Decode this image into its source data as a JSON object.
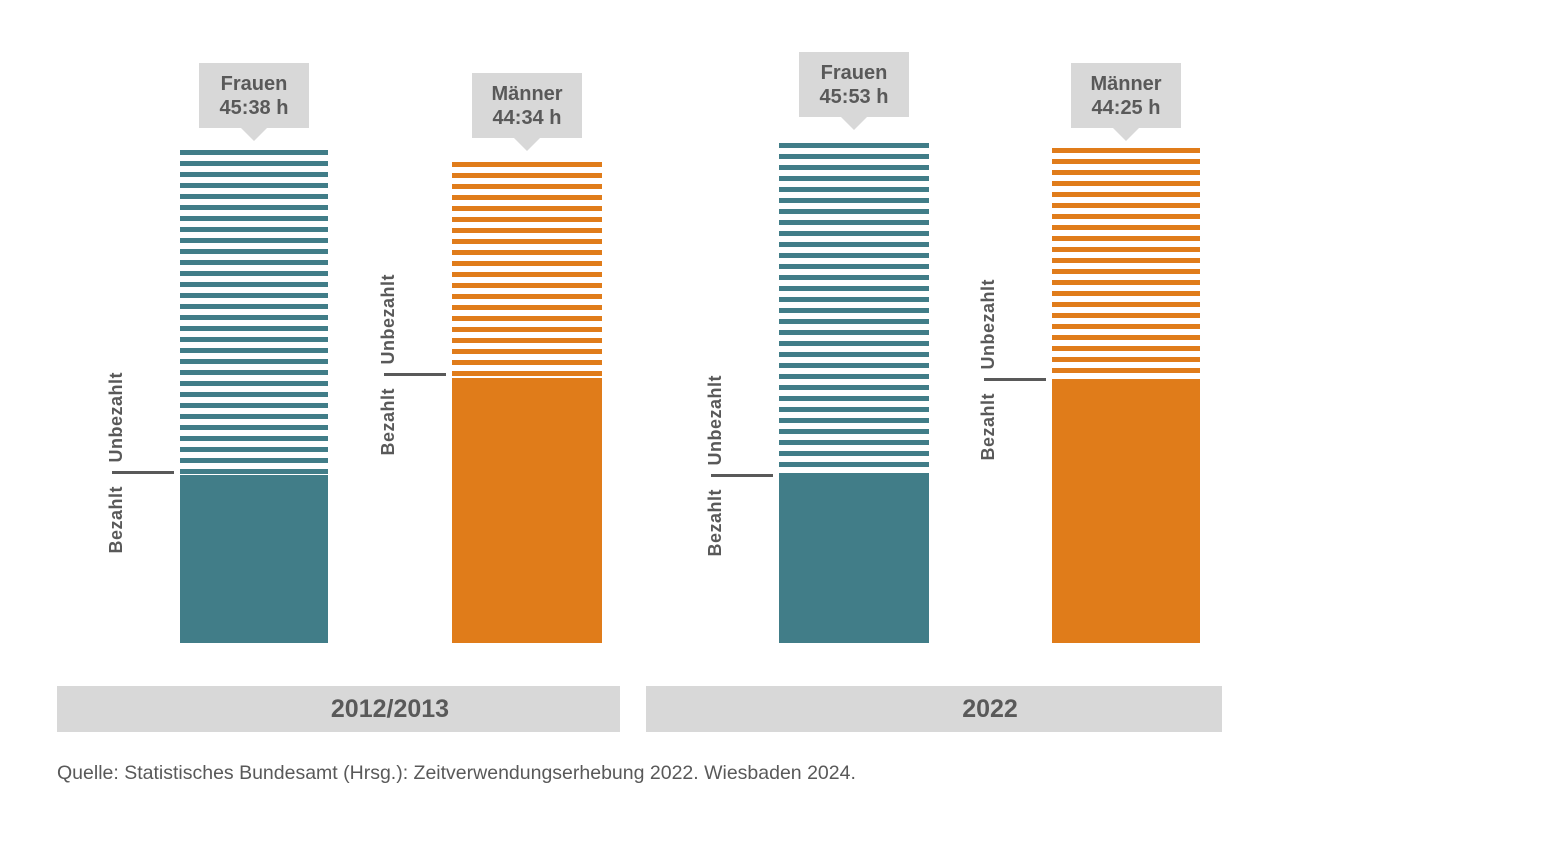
{
  "colors": {
    "frauen_teal": "#417D88",
    "maenner_orange": "#E07C1A",
    "label_box_gray": "#D8D8D8",
    "text_gray": "#595959",
    "background": "#FFFFFF"
  },
  "chart_data": {
    "type": "bar",
    "subtype": "stacked-pictorial-columns",
    "unit": "h (Stunden:Minuten pro Woche)",
    "grid": false,
    "segment_labels": {
      "paid": "Bezahlt",
      "unpaid": "Unbezahlt"
    },
    "segment_styles": {
      "paid": "solid fill",
      "unpaid": "horizontal stripes"
    },
    "groups": [
      {
        "label": "2012/2013",
        "bars": [
          {
            "name": "Frauen",
            "total_label": "45:38 h",
            "total_hours_decimal": 45.63,
            "color_key": "frauen_teal",
            "bezahlt_fraction_est": 0.34,
            "unbezahlt_fraction_est": 0.66
          },
          {
            "name": "Männer",
            "total_label": "44:34 h",
            "total_hours_decimal": 44.57,
            "color_key": "maenner_orange",
            "bezahlt_fraction_est": 0.55,
            "unbezahlt_fraction_est": 0.45
          }
        ]
      },
      {
        "label": "2022",
        "bars": [
          {
            "name": "Frauen",
            "total_label": "45:53 h",
            "total_hours_decimal": 45.88,
            "color_key": "frauen_teal",
            "bezahlt_fraction_est": 0.33,
            "unbezahlt_fraction_est": 0.67
          },
          {
            "name": "Männer",
            "total_label": "44:25 h",
            "total_hours_decimal": 44.42,
            "color_key": "maenner_orange",
            "bezahlt_fraction_est": 0.53,
            "unbezahlt_fraction_est": 0.47
          }
        ]
      }
    ],
    "legend_position": "rotated labels beside each column with divider tick"
  },
  "source": "Quelle: Statistisches Bundesamt (Hrsg.): Zeitverwendungserhebung 2022. Wiesbaden 2024."
}
